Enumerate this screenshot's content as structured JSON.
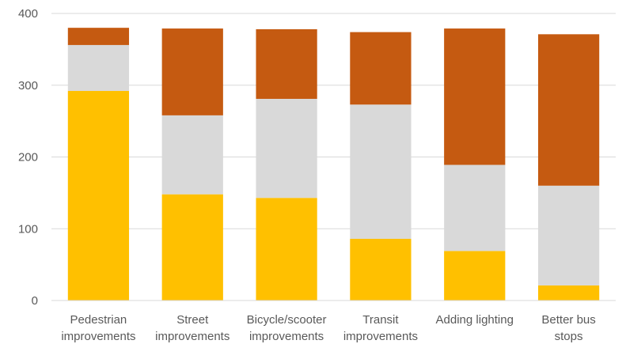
{
  "chart_data": {
    "type": "bar",
    "stacked": true,
    "categories": [
      [
        "Pedestrian",
        "improvements"
      ],
      [
        "Street",
        "improvements"
      ],
      [
        "Bicycle/scooter",
        "improvements"
      ],
      [
        "Transit",
        "improvements"
      ],
      [
        "Adding lighting"
      ],
      [
        "Better bus",
        "stops"
      ]
    ],
    "series": [
      {
        "color": "#FFC000",
        "values": [
          292,
          148,
          143,
          86,
          69,
          21
        ]
      },
      {
        "color": "#D9D9D9",
        "values": [
          64,
          110,
          138,
          187,
          120,
          139
        ]
      },
      {
        "color": "#C55A11",
        "values": [
          24,
          121,
          97,
          101,
          190,
          211
        ]
      }
    ],
    "ylim": [
      0,
      400
    ],
    "yticks": [
      0,
      100,
      200,
      300,
      400
    ],
    "grid": true,
    "title": "",
    "xlabel": "",
    "ylabel": ""
  }
}
